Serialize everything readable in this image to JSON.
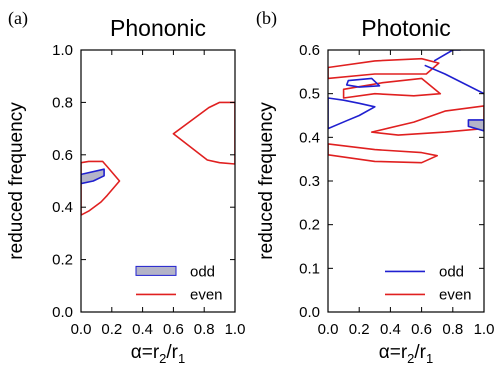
{
  "chart_data": [
    {
      "type": "line",
      "panel_label": "(a)",
      "title": "Phononic",
      "ylabel": "reduced frequency",
      "xlabel": "α=r2/r1",
      "xlabel_parts": {
        "main": "α=r",
        "sub1": "2",
        "slash": "/r",
        "sub2": "1"
      },
      "xlim": [
        0,
        1
      ],
      "ylim": [
        0,
        1
      ],
      "xticks": [
        "0.0",
        "0.2",
        "0.4",
        "0.6",
        "0.8",
        "1.0"
      ],
      "yticks": [
        "0.0",
        "0.2",
        "0.4",
        "0.6",
        "0.8",
        "1.0"
      ],
      "grid": false,
      "legend_position": "bottom-right",
      "legend": [
        {
          "label": "odd",
          "color": "#b4b4c8",
          "style": "filled"
        },
        {
          "label": "even",
          "color": "#e02020",
          "style": "line"
        }
      ],
      "series": [
        {
          "name": "even",
          "color": "#e02020",
          "regions": [
            [
              [
                0.0,
                0.57
              ],
              [
                0.05,
                0.575
              ],
              [
                0.14,
                0.575
              ],
              [
                0.17,
                0.555
              ],
              [
                0.25,
                0.5
              ],
              [
                0.17,
                0.445
              ],
              [
                0.13,
                0.42
              ],
              [
                0.05,
                0.385
              ],
              [
                0.0,
                0.37
              ]
            ],
            [
              [
                1.0,
                0.8
              ],
              [
                0.9,
                0.8
              ],
              [
                0.83,
                0.78
              ],
              [
                0.6,
                0.68
              ],
              [
                0.82,
                0.58
              ],
              [
                0.9,
                0.57
              ],
              [
                1.0,
                0.565
              ]
            ]
          ]
        },
        {
          "name": "odd",
          "color": "#2020d0",
          "fill": "#b4b4c8",
          "regions": [
            [
              [
                0.0,
                0.525
              ],
              [
                0.15,
                0.545
              ],
              [
                0.15,
                0.52
              ],
              [
                0.08,
                0.5
              ],
              [
                0.0,
                0.49
              ]
            ]
          ]
        }
      ]
    },
    {
      "type": "line",
      "panel_label": "(b)",
      "title": "Photonic",
      "ylabel": "reduced frequency",
      "xlabel": "α=r2/r1",
      "xlabel_parts": {
        "main": "α=r",
        "sub1": "2",
        "slash": "/r",
        "sub2": "1"
      },
      "xlim": [
        0,
        1
      ],
      "ylim": [
        0,
        0.6
      ],
      "xticks": [
        "0.0",
        "0.2",
        "0.4",
        "0.6",
        "0.8",
        "1.0"
      ],
      "yticks": [
        "0.0",
        "0.1",
        "0.2",
        "0.3",
        "0.4",
        "0.5",
        "0.6"
      ],
      "grid": false,
      "legend_position": "bottom-right",
      "legend": [
        {
          "label": "odd",
          "color": "#2020d0",
          "style": "line"
        },
        {
          "label": "even",
          "color": "#e02020",
          "style": "line"
        }
      ],
      "series": [
        {
          "name": "even",
          "color": "#e02020",
          "regions": [
            [
              [
                0.0,
                0.56
              ],
              [
                0.3,
                0.575
              ],
              [
                0.6,
                0.58
              ],
              [
                0.71,
                0.57
              ],
              [
                0.63,
                0.545
              ],
              [
                0.3,
                0.545
              ],
              [
                0.0,
                0.535
              ]
            ],
            [
              [
                0.0,
                0.385
              ],
              [
                0.3,
                0.372
              ],
              [
                0.6,
                0.365
              ],
              [
                0.7,
                0.358
              ],
              [
                0.6,
                0.342
              ],
              [
                0.3,
                0.345
              ],
              [
                0.0,
                0.36
              ]
            ],
            [
              [
                0.28,
                0.412
              ],
              [
                0.55,
                0.435
              ],
              [
                0.75,
                0.46
              ],
              [
                1.0,
                0.472
              ],
              [
                1.0,
                0.42
              ],
              [
                0.75,
                0.412
              ],
              [
                0.45,
                0.405
              ]
            ],
            [
              [
                0.1,
                0.51
              ],
              [
                0.35,
                0.525
              ],
              [
                0.6,
                0.535
              ],
              [
                0.72,
                0.5
              ],
              [
                0.55,
                0.495
              ],
              [
                0.3,
                0.5
              ],
              [
                0.1,
                0.49
              ]
            ]
          ]
        },
        {
          "name": "odd",
          "color": "#2020d0",
          "fill": "#b4b4c8",
          "regions": [
            [
              [
                0.0,
                0.42
              ],
              [
                0.12,
                0.438
              ],
              [
                0.2,
                0.45
              ],
              [
                0.3,
                0.47
              ],
              [
                0.2,
                0.478
              ],
              [
                0.1,
                0.485
              ],
              [
                0.0,
                0.49
              ]
            ],
            [
              [
                0.13,
                0.53
              ],
              [
                0.28,
                0.535
              ],
              [
                0.33,
                0.518
              ],
              [
                0.2,
                0.515
              ],
              [
                0.12,
                0.52
              ]
            ],
            [
              [
                0.68,
                0.575
              ],
              [
                0.8,
                0.6
              ],
              [
                0.85,
                0.6
              ]
            ],
            [
              [
                0.62,
                0.565
              ],
              [
                0.75,
                0.545
              ],
              [
                1.0,
                0.5
              ]
            ],
            [
              [
                0.9,
                0.425
              ],
              [
                1.0,
                0.415
              ],
              [
                1.0,
                0.44
              ],
              [
                0.9,
                0.44
              ]
            ]
          ]
        }
      ]
    }
  ]
}
